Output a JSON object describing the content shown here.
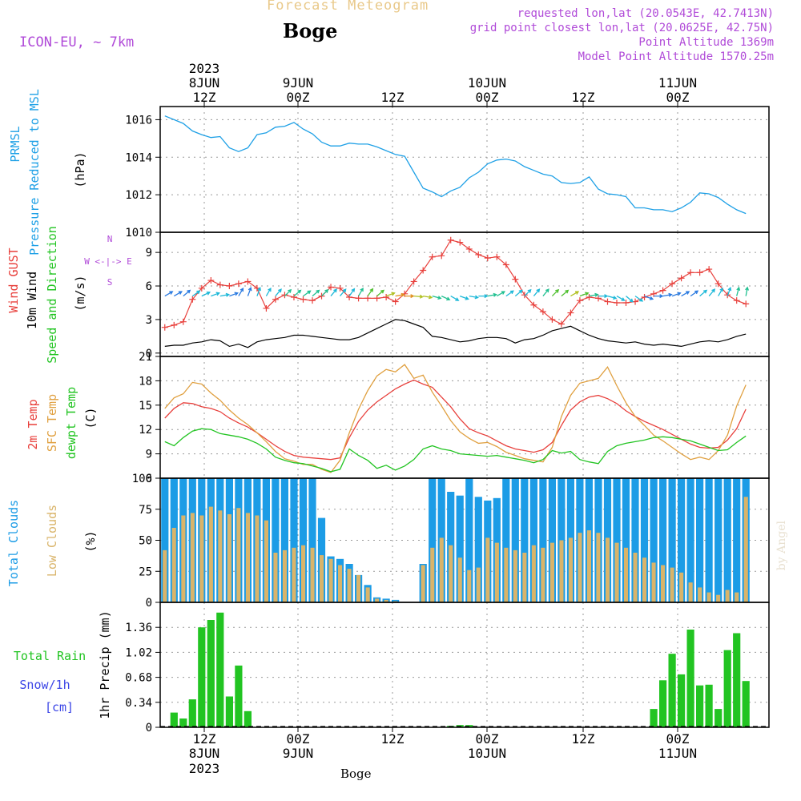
{
  "header": {
    "title": "Forecast Meteogram",
    "location": "Boge",
    "model": "ICON-EU, ~ 7km",
    "requested": "requested lon,lat (20.0543E, 42.7413N)",
    "grid_point": "grid point closest lon,lat (20.0625E, 42.75N)",
    "point_altitude": "Point Altitude 1369m",
    "model_altitude": "Model Point Altitude 1570.25m",
    "footer_location": "Boge",
    "watermark": "by Angel"
  },
  "colors": {
    "pressure": "#1ea0e6",
    "gust": "#e8403c",
    "wind": "#000000",
    "temp2m": "#e8403c",
    "sfc": "#e0a040",
    "dewpt": "#22c422",
    "total_clouds": "#1c9ce6",
    "low_clouds": "#d9b46a",
    "rain": "#22c422",
    "snow": "#3c46e6",
    "info": "#b04ad8"
  },
  "chart_data": [
    {
      "type": "line",
      "ylabel": [
        "PRMSL",
        "Pressure Reduced to MSL",
        "(hPa)"
      ],
      "ylim": [
        1010,
        1016.7
      ],
      "yticks": [
        "1016",
        "1014",
        "1012",
        "1010"
      ],
      "x": [
        0,
        1,
        2,
        3,
        4,
        5,
        6,
        7,
        8,
        9,
        10,
        11,
        12,
        13,
        14,
        15,
        16,
        17,
        18,
        19,
        20,
        21,
        22,
        23,
        24,
        25,
        26,
        27,
        28,
        29,
        30,
        31,
        32,
        33,
        34,
        35,
        36,
        37,
        38,
        39,
        40,
        41,
        42,
        43,
        44,
        45,
        46,
        47,
        48,
        49,
        50,
        51,
        52,
        53,
        54,
        55,
        56,
        57,
        58,
        59,
        60,
        61,
        62,
        63
      ],
      "series": [
        {
          "values": [
            1016.2,
            1016.0,
            1015.8,
            1015.4,
            1015.2,
            1015.05,
            1015.1,
            1014.5,
            1014.3,
            1014.5,
            1015.2,
            1015.3,
            1015.6,
            1015.65,
            1015.85,
            1015.5,
            1015.25,
            1014.8,
            1014.6,
            1014.6,
            1014.75,
            1014.7,
            1014.7,
            1014.55,
            1014.35,
            1014.15,
            1014.05,
            1013.2,
            1012.35,
            1012.15,
            1011.9,
            1012.2,
            1012.4,
            1012.9,
            1013.2,
            1013.65,
            1013.85,
            1013.9,
            1013.8,
            1013.5,
            1013.3,
            1013.1,
            1013.0,
            1012.65,
            1012.6,
            1012.65,
            1012.95,
            1012.3,
            1012.05,
            1012.0,
            1011.9,
            1011.3,
            1011.3,
            1011.2,
            1011.2,
            1011.1,
            1011.3,
            1011.6,
            1012.1,
            1012.05,
            1011.85,
            1011.5,
            1011.2,
            1011.0
          ]
        }
      ]
    },
    {
      "type": "line",
      "ylabel": [
        "Wind GUST",
        "10m Wind",
        "Speed and Direction",
        "(m/s)"
      ],
      "compass": [
        "N",
        "W <-|-> E",
        "S"
      ],
      "ylim": [
        -0.3,
        10.8
      ],
      "yticks": [
        "9",
        "6",
        "3",
        "0"
      ],
      "series": [
        {
          "name": "Wind GUST",
          "values": [
            2.3,
            2.5,
            2.8,
            4.8,
            5.8,
            6.5,
            6.1,
            6.0,
            6.2,
            6.4,
            5.8,
            4.0,
            4.8,
            5.2,
            5.0,
            4.8,
            4.7,
            5.1,
            5.9,
            5.8,
            5.0,
            4.9,
            4.9,
            4.9,
            5.0,
            4.6,
            5.3,
            6.4,
            7.4,
            8.6,
            8.7,
            10.1,
            9.9,
            9.3,
            8.8,
            8.5,
            8.6,
            7.9,
            6.6,
            5.2,
            4.3,
            3.7,
            3.0,
            2.6,
            3.6,
            4.7,
            5.0,
            4.9,
            4.6,
            4.5,
            4.5,
            4.6,
            5.0,
            5.3,
            5.6,
            6.2,
            6.7,
            7.2,
            7.2,
            7.5,
            6.2,
            5.2,
            4.7,
            4.4
          ]
        },
        {
          "name": "10m Wind",
          "values": [
            0.6,
            0.7,
            0.7,
            0.9,
            1.0,
            1.2,
            1.1,
            0.6,
            0.8,
            0.5,
            1.0,
            1.2,
            1.3,
            1.4,
            1.6,
            1.6,
            1.5,
            1.4,
            1.3,
            1.2,
            1.2,
            1.4,
            1.8,
            2.2,
            2.6,
            3.0,
            2.9,
            2.6,
            2.3,
            1.5,
            1.4,
            1.2,
            1.0,
            1.1,
            1.3,
            1.4,
            1.4,
            1.3,
            0.9,
            1.2,
            1.3,
            1.6,
            2.0,
            2.2,
            2.4,
            2.0,
            1.6,
            1.3,
            1.1,
            1.0,
            0.9,
            1.0,
            0.8,
            0.7,
            0.8,
            0.7,
            0.6,
            0.8,
            1.0,
            1.1,
            1.0,
            1.2,
            1.5,
            1.7
          ]
        }
      ],
      "wind_arrows": {
        "samples": 64,
        "dir_deg": [
          240,
          240,
          230,
          235,
          245,
          250,
          260,
          250,
          210,
          200,
          200,
          210,
          220,
          225,
          230,
          235,
          230,
          225,
          220,
          220,
          215,
          210,
          215,
          230,
          250,
          260,
          270,
          275,
          280,
          285,
          295,
          300,
          290,
          280,
          270,
          260,
          240,
          235,
          230,
          225,
          220,
          220,
          225,
          230,
          240,
          250,
          260,
          270,
          285,
          300,
          310,
          305,
          290,
          270,
          260,
          250,
          240,
          235,
          230,
          220,
          210,
          200,
          195,
          190
        ],
        "palette": [
          "#3a2ad0",
          "#2a7ae0",
          "#1cb8d8",
          "#20c090",
          "#50c030",
          "#b0c020",
          "#e09020",
          "#e04020"
        ]
      }
    },
    {
      "type": "line",
      "ylabel": [
        "2m Temp",
        "SFC Temp",
        "dewpt Temp",
        "(C)"
      ],
      "ylim": [
        6,
        21
      ],
      "yticks": [
        "21",
        "18",
        "15",
        "12",
        "9",
        "6"
      ],
      "series": [
        {
          "name": "2m Temp",
          "values": [
            13.4,
            14.6,
            15.3,
            15.2,
            14.8,
            14.6,
            14.2,
            13.4,
            12.8,
            12.3,
            11.6,
            10.8,
            10.0,
            9.3,
            8.8,
            8.6,
            8.5,
            8.4,
            8.3,
            8.5,
            11.0,
            13.0,
            14.4,
            15.4,
            16.2,
            17.0,
            17.6,
            18.1,
            17.6,
            17.2,
            16.0,
            14.8,
            13.3,
            12.1,
            11.6,
            11.2,
            10.6,
            10.0,
            9.6,
            9.4,
            9.2,
            9.5,
            10.4,
            12.5,
            14.4,
            15.4,
            16.0,
            16.2,
            15.8,
            15.2,
            14.3,
            13.6,
            13.0,
            12.5,
            12.0,
            11.4,
            10.8,
            10.2,
            9.8,
            9.7,
            9.8,
            10.7,
            12.1,
            14.5
          ]
        },
        {
          "name": "SFC Temp",
          "values": [
            14.6,
            15.9,
            16.4,
            17.8,
            17.6,
            16.5,
            15.6,
            14.4,
            13.4,
            12.6,
            11.6,
            10.5,
            9.3,
            8.4,
            8.1,
            7.7,
            7.7,
            7.1,
            6.7,
            8.2,
            11.6,
            14.5,
            16.8,
            18.6,
            19.4,
            19.1,
            20.0,
            18.3,
            18.7,
            16.6,
            14.9,
            13.1,
            11.7,
            10.9,
            10.3,
            10.4,
            9.9,
            9.2,
            8.8,
            8.4,
            8.2,
            8.0,
            9.8,
            13.6,
            16.2,
            17.7,
            18.0,
            18.3,
            19.7,
            17.4,
            15.3,
            13.6,
            12.5,
            11.3,
            10.6,
            9.8,
            9.0,
            8.3,
            8.6,
            8.3,
            9.4,
            11.3,
            14.9,
            17.5
          ]
        },
        {
          "name": "dewpt Temp",
          "values": [
            10.5,
            10.0,
            11.0,
            11.8,
            12.1,
            12.0,
            11.5,
            11.3,
            11.1,
            10.8,
            10.3,
            9.6,
            8.6,
            8.2,
            7.9,
            7.8,
            7.5,
            7.2,
            6.8,
            7.1,
            9.6,
            8.8,
            8.2,
            7.2,
            7.6,
            7.0,
            7.5,
            8.3,
            9.6,
            10.0,
            9.6,
            9.4,
            9.0,
            8.9,
            8.8,
            8.7,
            8.8,
            8.6,
            8.4,
            8.2,
            7.9,
            8.3,
            9.4,
            9.1,
            9.3,
            8.3,
            8.0,
            7.8,
            9.3,
            10.0,
            10.3,
            10.5,
            10.7,
            11.0,
            11.1,
            11.0,
            10.8,
            10.6,
            10.2,
            9.8,
            9.4,
            9.5,
            10.4,
            11.2
          ]
        }
      ]
    },
    {
      "type": "bar",
      "ylabel": [
        "Total Clouds",
        "Low Clouds",
        "(%)"
      ],
      "ylim": [
        0,
        100
      ],
      "yticks": [
        "100",
        "75",
        "50",
        "25",
        "0"
      ],
      "series": [
        {
          "name": "Total Clouds",
          "values": [
            100,
            100,
            100,
            100,
            100,
            100,
            100,
            100,
            100,
            100,
            100,
            100,
            100,
            100,
            100,
            100,
            100,
            68,
            37,
            35,
            31,
            22,
            14,
            4,
            3,
            2,
            0,
            0,
            31,
            100,
            100,
            89,
            86,
            100,
            85,
            82,
            84,
            100,
            100,
            100,
            100,
            100,
            100,
            100,
            100,
            100,
            100,
            100,
            100,
            100,
            100,
            100,
            100,
            100,
            100,
            100,
            100,
            100,
            100,
            100,
            100,
            100,
            100,
            100
          ]
        },
        {
          "name": "Low Clouds",
          "values": [
            42,
            60,
            70,
            72,
            70,
            77,
            74,
            71,
            76,
            72,
            70,
            66,
            40,
            42,
            44,
            46,
            44,
            38,
            35,
            30,
            27,
            22,
            12,
            3,
            2,
            1,
            0,
            0,
            30,
            44,
            52,
            46,
            36,
            26,
            28,
            52,
            48,
            44,
            42,
            40,
            46,
            44,
            48,
            50,
            52,
            56,
            58,
            56,
            52,
            48,
            44,
            40,
            36,
            32,
            30,
            28,
            24,
            16,
            12,
            8,
            6,
            10,
            8,
            85
          ]
        }
      ]
    },
    {
      "type": "bar",
      "ylabel": [
        "Total Rain",
        "Snow/1h",
        "[cm]",
        "1hr Precip (mm)"
      ],
      "ylim": [
        0,
        1.7
      ],
      "yticks": [
        "1.36",
        "1.02",
        "0.68",
        "0.34",
        "0"
      ],
      "series": [
        {
          "name": "Total Rain",
          "values": [
            0,
            0.2,
            0.12,
            0.38,
            1.36,
            1.46,
            1.56,
            0.42,
            0.84,
            0.22,
            0,
            0,
            0,
            0,
            0,
            0,
            0,
            0,
            0,
            0,
            0,
            0,
            0,
            0,
            0,
            0,
            0,
            0,
            0,
            0,
            0,
            0.02,
            0.03,
            0.03,
            0,
            0,
            0,
            0,
            0,
            0,
            0,
            0,
            0,
            0,
            0,
            0,
            0,
            0,
            0,
            0,
            0,
            0,
            0,
            0.25,
            0.64,
            1.0,
            0.72,
            1.33,
            0.57,
            0.58,
            0.25,
            1.05,
            1.28,
            0.63
          ]
        }
      ]
    }
  ],
  "axis": {
    "top_labels": [
      {
        "l1": "2023",
        "l2": "8JUN",
        "l3": "12Z"
      },
      {
        "l1": "",
        "l2": "9JUN",
        "l3": "00Z"
      },
      {
        "l1": "",
        "l2": "",
        "l3": "12Z"
      },
      {
        "l1": "",
        "l2": "10JUN",
        "l3": "00Z"
      },
      {
        "l1": "",
        "l2": "",
        "l3": "12Z"
      },
      {
        "l1": "",
        "l2": "11JUN",
        "l3": "00Z"
      }
    ],
    "bottom_labels": [
      {
        "l1": "12Z",
        "l2": "8JUN",
        "l3": "2023"
      },
      {
        "l1": "00Z",
        "l2": "9JUN",
        "l3": ""
      },
      {
        "l1": "12Z",
        "l2": "",
        "l3": ""
      },
      {
        "l1": "00Z",
        "l2": "10JUN",
        "l3": ""
      },
      {
        "l1": "12Z",
        "l2": "",
        "l3": ""
      },
      {
        "l1": "00Z",
        "l2": "11JUN",
        "l3": ""
      }
    ]
  }
}
